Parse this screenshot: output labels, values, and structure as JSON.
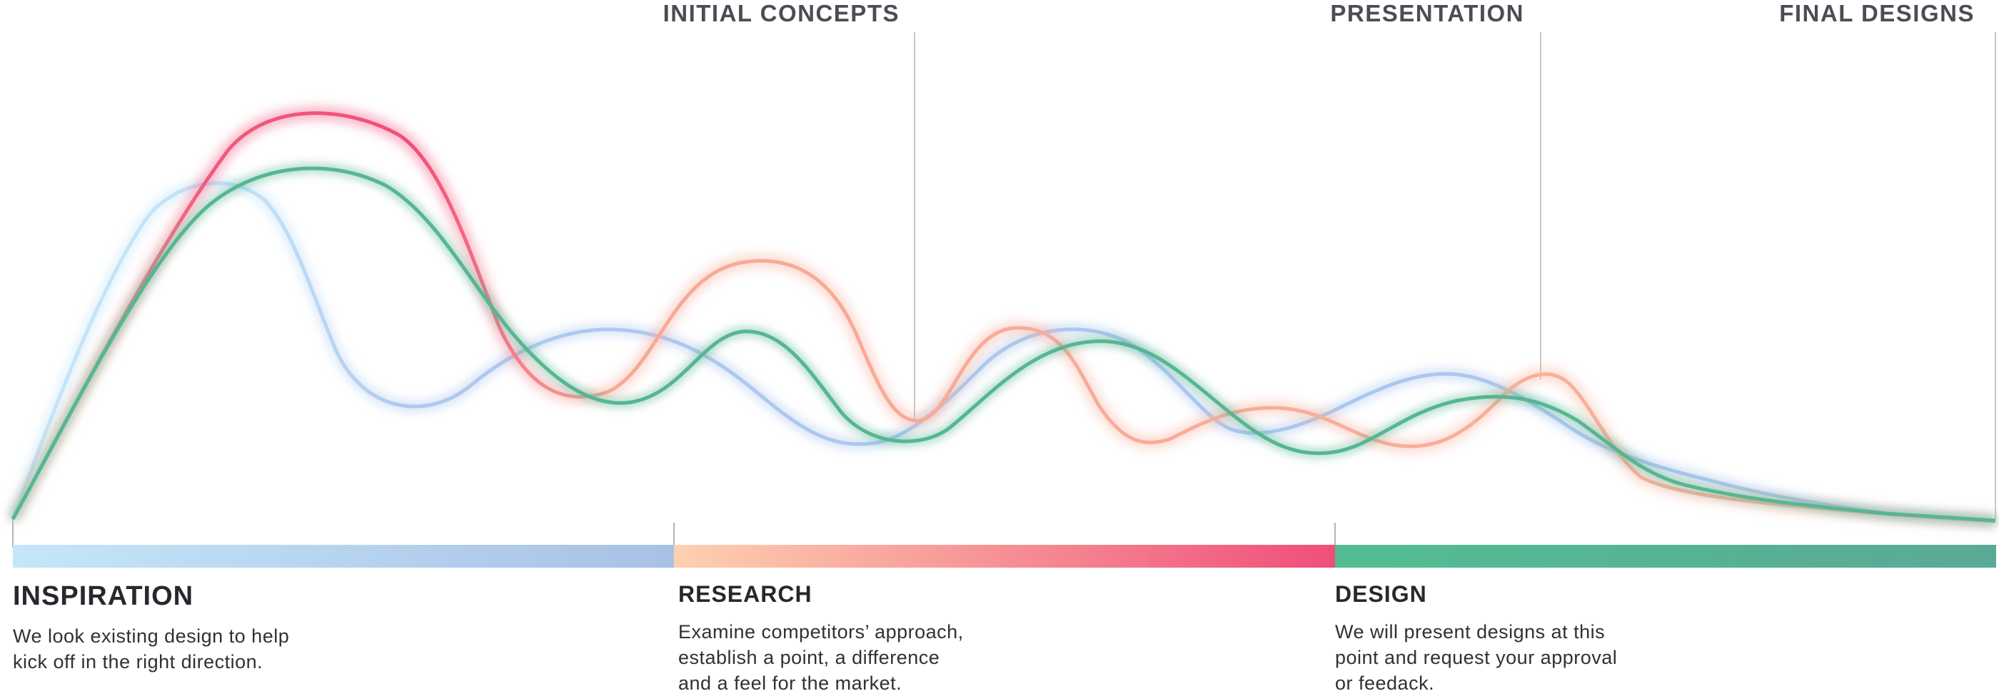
{
  "milestones": [
    {
      "label": "INITIAL CONCEPTS"
    },
    {
      "label": "PRESENTATION"
    },
    {
      "label": "FINAL DESIGNS"
    }
  ],
  "phases": [
    {
      "title": "INSPIRATION",
      "desc_lines": [
        "We look existing design to help",
        "kick off in the right direction."
      ],
      "gradient": [
        "#c5e6f9",
        "#a8c1e5"
      ]
    },
    {
      "title": "RESEARCH",
      "desc_lines": [
        "Examine competitors’ approach,",
        "establish a point, a difference",
        "and a feel for the market."
      ],
      "gradient": [
        "#fdd1b0",
        "#f04e7a"
      ]
    },
    {
      "title": "DESIGN",
      "desc_lines": [
        "We will present designs at this",
        "point and request your approval",
        "or feedack."
      ],
      "gradient": [
        "#52bd92",
        "#5aa996"
      ]
    }
  ],
  "colors": {
    "inspiration_curve": "#a9c6ee",
    "inspiration_curve_start": "#c5e6f9",
    "research_curve": "#f7a797",
    "research_curve_peak": "#f24d78",
    "design_curve": "#56b692",
    "milestone_line": "#c7c7cc",
    "label_text": "#4a4d55"
  }
}
